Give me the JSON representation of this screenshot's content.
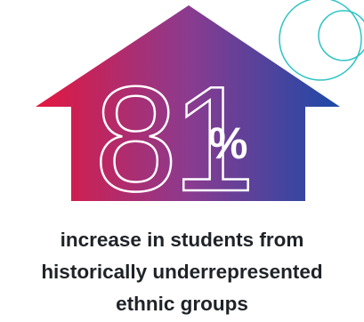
{
  "stat": {
    "number": "81",
    "unit": "%"
  },
  "caption": {
    "line1": "increase in students from",
    "line2": "historically underrepresented",
    "line3": "ethnic groups"
  },
  "colors": {
    "gradient_start": "#e3173f",
    "gradient_mid": "#8b3b8f",
    "gradient_end": "#1c4aa8",
    "outline_text": "#ffffff",
    "accent_circle": "#2ec3c3",
    "caption_text": "#1f2328"
  },
  "icons": {
    "house": "house-arrow-icon",
    "decor": "circle-outline-icon"
  }
}
